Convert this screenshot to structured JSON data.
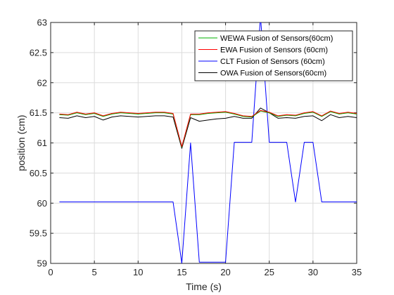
{
  "chart_data": {
    "type": "line",
    "title": "",
    "xlabel": "Time (s)",
    "ylabel": "position (cm)",
    "xlim": [
      0,
      35
    ],
    "ylim": [
      59,
      63
    ],
    "xticks": [
      0,
      5,
      10,
      15,
      20,
      25,
      30,
      35
    ],
    "yticks": [
      59,
      59.5,
      60,
      60.5,
      61,
      61.5,
      62,
      62.5,
      63
    ],
    "grid": true,
    "legend_position": "top-right",
    "series": [
      {
        "name": "WEWA Fusion of Sensors(60cm)",
        "color": "#00b000",
        "x": [
          1,
          2,
          3,
          4,
          5,
          6,
          7,
          8,
          9,
          10,
          11,
          12,
          13,
          14,
          15,
          16,
          17,
          18,
          19,
          20,
          21,
          22,
          23,
          24,
          25,
          26,
          27,
          28,
          29,
          30,
          31,
          32,
          33,
          34,
          35
        ],
        "y": [
          61.47,
          61.46,
          61.5,
          61.47,
          61.49,
          61.44,
          61.48,
          61.5,
          61.49,
          61.48,
          61.49,
          61.5,
          61.5,
          61.48,
          60.93,
          61.47,
          61.47,
          61.49,
          61.5,
          61.51,
          61.48,
          61.44,
          61.43,
          61.53,
          61.5,
          61.44,
          61.46,
          61.45,
          61.49,
          61.51,
          61.44,
          61.52,
          61.48,
          61.5,
          61.48
        ]
      },
      {
        "name": "EWA Fusion of Sensors (60cm)",
        "color": "#ff0000",
        "x": [
          1,
          2,
          3,
          4,
          5,
          6,
          7,
          8,
          9,
          10,
          11,
          12,
          13,
          14,
          15,
          16,
          17,
          18,
          19,
          20,
          21,
          22,
          23,
          24,
          25,
          26,
          27,
          28,
          29,
          30,
          31,
          32,
          33,
          34,
          35
        ],
        "y": [
          61.48,
          61.47,
          61.51,
          61.48,
          61.5,
          61.45,
          61.49,
          61.51,
          61.5,
          61.49,
          61.5,
          61.51,
          61.51,
          61.49,
          60.94,
          61.48,
          61.48,
          61.5,
          61.51,
          61.52,
          61.49,
          61.45,
          61.44,
          61.54,
          61.51,
          61.45,
          61.47,
          61.46,
          61.5,
          61.52,
          61.45,
          61.53,
          61.49,
          61.51,
          61.49
        ]
      },
      {
        "name": "CLT Fusion of Sensors (60cm)",
        "color": "#0000ff",
        "x": [
          1,
          2,
          3,
          4,
          5,
          6,
          7,
          8,
          9,
          10,
          11,
          12,
          13,
          14,
          15,
          16,
          17,
          18,
          19,
          20,
          21,
          22,
          23,
          24,
          25,
          26,
          27,
          28,
          29,
          30,
          31,
          32,
          33,
          34,
          35
        ],
        "y": [
          60.02,
          60.02,
          60.02,
          60.02,
          60.02,
          60.02,
          60.02,
          60.02,
          60.02,
          60.02,
          60.02,
          60.02,
          60.02,
          60.02,
          59.0,
          61.0,
          59.02,
          59.02,
          59.02,
          59.02,
          61.01,
          61.01,
          61.01,
          63.1,
          61.01,
          61.01,
          61.01,
          60.02,
          61.01,
          61.01,
          60.02,
          60.02,
          60.02,
          60.02,
          60.02
        ]
      },
      {
        "name": "OWA Fusion of Sensors(60cm)",
        "color": "#000000",
        "x": [
          1,
          2,
          3,
          4,
          5,
          6,
          7,
          8,
          9,
          10,
          11,
          12,
          13,
          14,
          15,
          16,
          17,
          18,
          19,
          20,
          21,
          22,
          23,
          24,
          25,
          26,
          27,
          28,
          29,
          30,
          31,
          32,
          33,
          34,
          35
        ],
        "y": [
          61.42,
          61.41,
          61.45,
          61.42,
          61.44,
          61.38,
          61.43,
          61.45,
          61.44,
          61.43,
          61.44,
          61.45,
          61.45,
          61.43,
          60.91,
          61.42,
          61.36,
          61.38,
          61.4,
          61.41,
          61.44,
          61.41,
          61.41,
          61.58,
          61.5,
          61.41,
          61.42,
          61.41,
          61.44,
          61.45,
          61.37,
          61.47,
          61.42,
          61.44,
          61.42
        ]
      }
    ]
  }
}
